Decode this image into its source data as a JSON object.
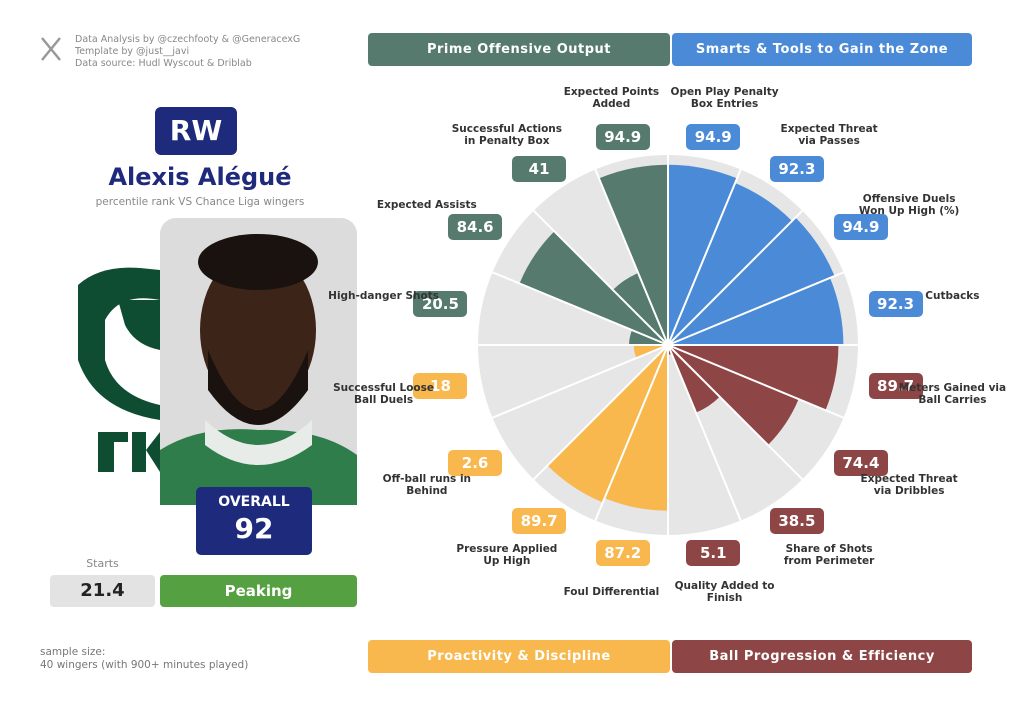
{
  "chart_data": {
    "type": "pizza",
    "ylim": [
      0,
      100
    ],
    "series": [
      {
        "name": "Smarts & Tools to Gain the Zone",
        "color": "#4a8ad6",
        "categories": [
          "Open Play Penalty Box Entries",
          "Expected Threat via Passes",
          "Offensive Duels Won Up High (%)",
          "Cutbacks"
        ],
        "values": [
          94.9,
          92.3,
          94.9,
          92.3
        ]
      },
      {
        "name": "Ball Progression & Efficiency",
        "color": "#8e4545",
        "categories": [
          "Meters Gained via Ball Carries",
          "Expected Threat via Dribbles",
          "Share of Shots from Perimeter",
          "Quality Added to Finish"
        ],
        "values": [
          89.7,
          74.4,
          38.5,
          5.1
        ]
      },
      {
        "name": "Proactivity & Discipline",
        "color": "#f8b84e",
        "categories": [
          "Foul Differential",
          "Pressure Applied Up High",
          "Off-ball runs in Behind",
          "Successful Loose Ball Duels"
        ],
        "values": [
          87.2,
          89.7,
          2.6,
          18
        ]
      },
      {
        "name": "Prime Offensive Output",
        "color": "#567a6e",
        "categories": [
          "High-danger Shots",
          "Expected Assists",
          "Successful Actions in Penalty Box",
          "Expected Points Added"
        ],
        "values": [
          20.5,
          84.6,
          41,
          94.9
        ]
      }
    ]
  },
  "credits": [
    "Data Analysis by @czechfooty & @GeneracexG",
    "Template by @just__javi",
    "Data source: Hudl Wyscout & Driblab"
  ],
  "profile": {
    "position": "RW",
    "name": "Alexis Alégué",
    "subtitle": "percentile rank VS Chance Liga wingers",
    "overall_label": "OVERALL",
    "overall": "92",
    "starts_label": "Starts",
    "starts": "21.4",
    "form": "Peaking"
  },
  "sample": [
    "sample size:",
    "40 wingers (with 900+ minutes played)"
  ]
}
